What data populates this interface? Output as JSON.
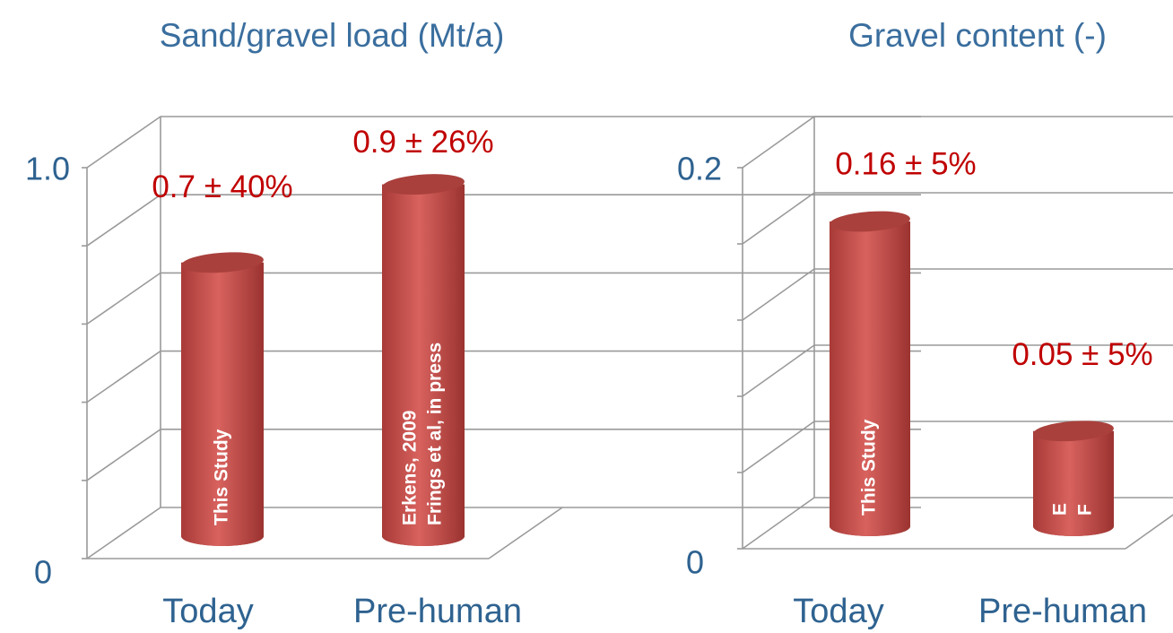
{
  "chart_data": [
    {
      "type": "bar3d",
      "title": "Sand/gravel load (Mt/a)",
      "categories": [
        "Today",
        "Pre-human"
      ],
      "values": [
        0.7,
        0.9
      ],
      "value_labels": [
        "0.7 ± 40%",
        "0.9 ± 26%"
      ],
      "bar_notes": [
        [
          "This Study"
        ],
        [
          "Erkens, 2009",
          "Frings et al, in press"
        ]
      ],
      "color": "#c0504d",
      "ylim": [
        0,
        1
      ],
      "yticks": [
        0,
        {
          "value": 0.2,
          "label": null
        },
        {
          "value": 0.4,
          "label": null
        },
        {
          "value": 0.6,
          "label": null
        },
        {
          "value": 0.8,
          "label": null
        },
        {
          "value": 1,
          "label": "1.0"
        }
      ],
      "grid": true
    },
    {
      "type": "bar3d",
      "title": "Gravel content (-)",
      "categories": [
        "Today",
        "Pre-human"
      ],
      "values": [
        0.16,
        0.05
      ],
      "value_labels": [
        "0.16 ± 5%",
        "0.05 ± 5%"
      ],
      "bar_notes": [
        [
          "This Study"
        ],
        [
          "E",
          "F"
        ]
      ],
      "color": "#c0504d",
      "ylim": [
        0,
        0.2
      ],
      "yticks": [
        0,
        {
          "value": 0.04,
          "label": null
        },
        {
          "value": 0.08,
          "label": null
        },
        {
          "value": 0.12,
          "label": null
        },
        {
          "value": 0.16,
          "label": null
        },
        0.2
      ],
      "grid": true
    }
  ]
}
